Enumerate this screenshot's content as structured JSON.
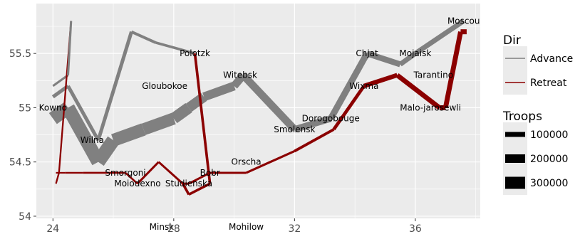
{
  "chart_data": {
    "type": "line",
    "xlabel": "",
    "ylabel": "",
    "xlim": [
      23.45,
      38.15
    ],
    "ylim": [
      53.98,
      55.96
    ],
    "x_ticks": [
      24,
      28,
      32,
      36
    ],
    "y_ticks": [
      54,
      54.5,
      55,
      55.5
    ],
    "grid": true,
    "legend_position": "right",
    "colors": {
      "advance": "#808080",
      "retreat": "#8b0000",
      "panel": "#ebebeb",
      "grid": "#ffffff"
    },
    "legend": {
      "dir_title": "Dir",
      "dir_items": [
        {
          "key": "advance",
          "label": "Advance"
        },
        {
          "key": "retreat",
          "label": "Retreat"
        }
      ],
      "troops_title": "Troops",
      "troops_items": [
        {
          "value": 100000,
          "label": "100000"
        },
        {
          "value": 200000,
          "label": "200000"
        },
        {
          "value": 300000,
          "label": "300000"
        }
      ]
    },
    "series": [
      {
        "direction": "advance",
        "group": 1,
        "points": [
          {
            "x": 24.0,
            "y": 54.9,
            "troops": 340000
          },
          {
            "x": 24.5,
            "y": 55.0,
            "troops": 340000
          },
          {
            "x": 25.5,
            "y": 54.5,
            "troops": 340000
          },
          {
            "x": 26.0,
            "y": 54.7,
            "troops": 320000
          },
          {
            "x": 27.0,
            "y": 54.8,
            "troops": 300000
          },
          {
            "x": 28.0,
            "y": 54.9,
            "troops": 280000
          },
          {
            "x": 28.5,
            "y": 55.0,
            "troops": 240000
          },
          {
            "x": 29.0,
            "y": 55.1,
            "troops": 210000
          },
          {
            "x": 30.0,
            "y": 55.2,
            "troops": 180000
          },
          {
            "x": 30.3,
            "y": 55.3,
            "troops": 175000
          },
          {
            "x": 32.0,
            "y": 54.8,
            "troops": 145000
          },
          {
            "x": 33.2,
            "y": 54.9,
            "troops": 140000
          },
          {
            "x": 34.4,
            "y": 55.5,
            "troops": 127100
          },
          {
            "x": 35.5,
            "y": 55.4,
            "troops": 100000
          },
          {
            "x": 36.0,
            "y": 55.5,
            "troops": 100000
          },
          {
            "x": 37.6,
            "y": 55.8,
            "troops": 100000
          }
        ]
      },
      {
        "direction": "retreat",
        "group": 1,
        "points": [
          {
            "x": 37.7,
            "y": 55.7,
            "troops": 100000
          },
          {
            "x": 37.5,
            "y": 55.7,
            "troops": 98000
          },
          {
            "x": 37.0,
            "y": 55.0,
            "troops": 97000
          },
          {
            "x": 36.8,
            "y": 55.0,
            "troops": 96000
          },
          {
            "x": 35.4,
            "y": 55.3,
            "troops": 87000
          },
          {
            "x": 34.3,
            "y": 55.2,
            "troops": 55000
          },
          {
            "x": 33.3,
            "y": 54.8,
            "troops": 37000
          },
          {
            "x": 32.0,
            "y": 54.6,
            "troops": 24000
          },
          {
            "x": 30.4,
            "y": 54.4,
            "troops": 20000
          },
          {
            "x": 29.2,
            "y": 54.4,
            "troops": 20000
          },
          {
            "x": 28.5,
            "y": 54.3,
            "troops": 20000
          },
          {
            "x": 28.3,
            "y": 54.3,
            "troops": 20000
          },
          {
            "x": 27.5,
            "y": 54.5,
            "troops": 20000
          },
          {
            "x": 26.8,
            "y": 54.3,
            "troops": 12000
          },
          {
            "x": 26.4,
            "y": 54.4,
            "troops": 14000
          },
          {
            "x": 25.0,
            "y": 54.4,
            "troops": 8000
          },
          {
            "x": 24.4,
            "y": 54.4,
            "troops": 4000
          },
          {
            "x": 24.2,
            "y": 54.4,
            "troops": 4000
          },
          {
            "x": 24.1,
            "y": 54.4,
            "troops": 4000
          }
        ]
      },
      {
        "direction": "advance",
        "group": 2,
        "points": [
          {
            "x": 24.0,
            "y": 55.1,
            "troops": 60000
          },
          {
            "x": 24.5,
            "y": 55.2,
            "troops": 60000
          },
          {
            "x": 25.5,
            "y": 54.7,
            "troops": 60000
          },
          {
            "x": 26.6,
            "y": 55.7,
            "troops": 40000
          },
          {
            "x": 27.4,
            "y": 55.6,
            "troops": 33000
          },
          {
            "x": 28.7,
            "y": 55.5,
            "troops": 33000
          }
        ]
      },
      {
        "direction": "retreat",
        "group": 2,
        "points": [
          {
            "x": 28.7,
            "y": 55.5,
            "troops": 33000
          },
          {
            "x": 29.2,
            "y": 54.3,
            "troops": 30000
          },
          {
            "x": 28.5,
            "y": 54.2,
            "troops": 30000
          },
          {
            "x": 28.3,
            "y": 54.3,
            "troops": 28000
          },
          {
            "x": 28.5,
            "y": 54.2,
            "troops": 28000
          }
        ]
      },
      {
        "direction": "advance",
        "group": 3,
        "points": [
          {
            "x": 24.0,
            "y": 55.2,
            "troops": 22000
          },
          {
            "x": 24.5,
            "y": 55.3,
            "troops": 22000
          }
        ]
      },
      {
        "direction": "retreat",
        "group": 3,
        "points": [
          {
            "x": 24.6,
            "y": 55.8,
            "troops": 6000
          },
          {
            "x": 24.2,
            "y": 54.4,
            "troops": 6000
          },
          {
            "x": 24.1,
            "y": 54.3,
            "troops": 6000
          }
        ]
      },
      {
        "direction": "advance",
        "group": 4,
        "points": [
          {
            "x": 24.5,
            "y": 55.3,
            "troops": 22000
          },
          {
            "x": 24.6,
            "y": 55.8,
            "troops": 6000
          }
        ]
      }
    ],
    "cities": [
      {
        "name": "Kowno",
        "x": 24.0,
        "y": 55.0
      },
      {
        "name": "Wilna",
        "x": 25.3,
        "y": 54.7
      },
      {
        "name": "Smorgoni",
        "x": 26.4,
        "y": 54.4
      },
      {
        "name": "Moiodexno",
        "x": 26.8,
        "y": 54.3
      },
      {
        "name": "Gloubokoe",
        "x": 27.7,
        "y": 55.2
      },
      {
        "name": "Minsk",
        "x": 27.6,
        "y": 53.9
      },
      {
        "name": "Studienska",
        "x": 28.5,
        "y": 54.3
      },
      {
        "name": "Polotzk",
        "x": 28.7,
        "y": 55.5
      },
      {
        "name": "Bobr",
        "x": 29.2,
        "y": 54.4
      },
      {
        "name": "Witebsk",
        "x": 30.2,
        "y": 55.3
      },
      {
        "name": "Orscha",
        "x": 30.4,
        "y": 54.5
      },
      {
        "name": "Mohilow",
        "x": 30.4,
        "y": 53.9
      },
      {
        "name": "Smolensk",
        "x": 32.0,
        "y": 54.8
      },
      {
        "name": "Dorogobouge",
        "x": 33.2,
        "y": 54.9
      },
      {
        "name": "Wixma",
        "x": 34.3,
        "y": 55.2
      },
      {
        "name": "Chjat",
        "x": 34.4,
        "y": 55.5
      },
      {
        "name": "Mojaisk",
        "x": 36.0,
        "y": 55.5
      },
      {
        "name": "Tarantino",
        "x": 36.6,
        "y": 55.3
      },
      {
        "name": "Moscou",
        "x": 37.6,
        "y": 55.8
      },
      {
        "name": "Malo-jarosewli",
        "x": 36.5,
        "y": 55.0
      }
    ]
  }
}
